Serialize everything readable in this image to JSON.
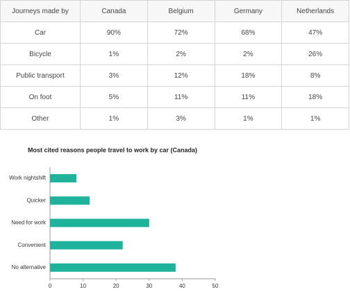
{
  "table": {
    "header": [
      "Journeys made by",
      "Canada",
      "Belgium",
      "Germany",
      "Netherlands"
    ],
    "rows": [
      [
        "Car",
        "90%",
        "72%",
        "68%",
        "47%"
      ],
      [
        "Bicycle",
        "1%",
        "2%",
        "2%",
        "26%"
      ],
      [
        "Public transport",
        "3%",
        "12%",
        "18%",
        "8%"
      ],
      [
        "On foot",
        "5%",
        "11%",
        "11%",
        "18%"
      ],
      [
        "Other",
        "1%",
        "3%",
        "1%",
        "1%"
      ]
    ]
  },
  "chart_data": {
    "type": "bar",
    "orientation": "horizontal",
    "title": "Most cited reasons people travel to work by car (Canada)",
    "categories": [
      "Work nightshift",
      "Quicker",
      "Need for work",
      "Convenient",
      "No alternative"
    ],
    "values": [
      8,
      12,
      30,
      22,
      38
    ],
    "color": "#1fb39b",
    "xlim": [
      0,
      50
    ],
    "xticks": [
      0,
      10,
      20,
      30,
      40,
      50
    ],
    "grid": false
  }
}
